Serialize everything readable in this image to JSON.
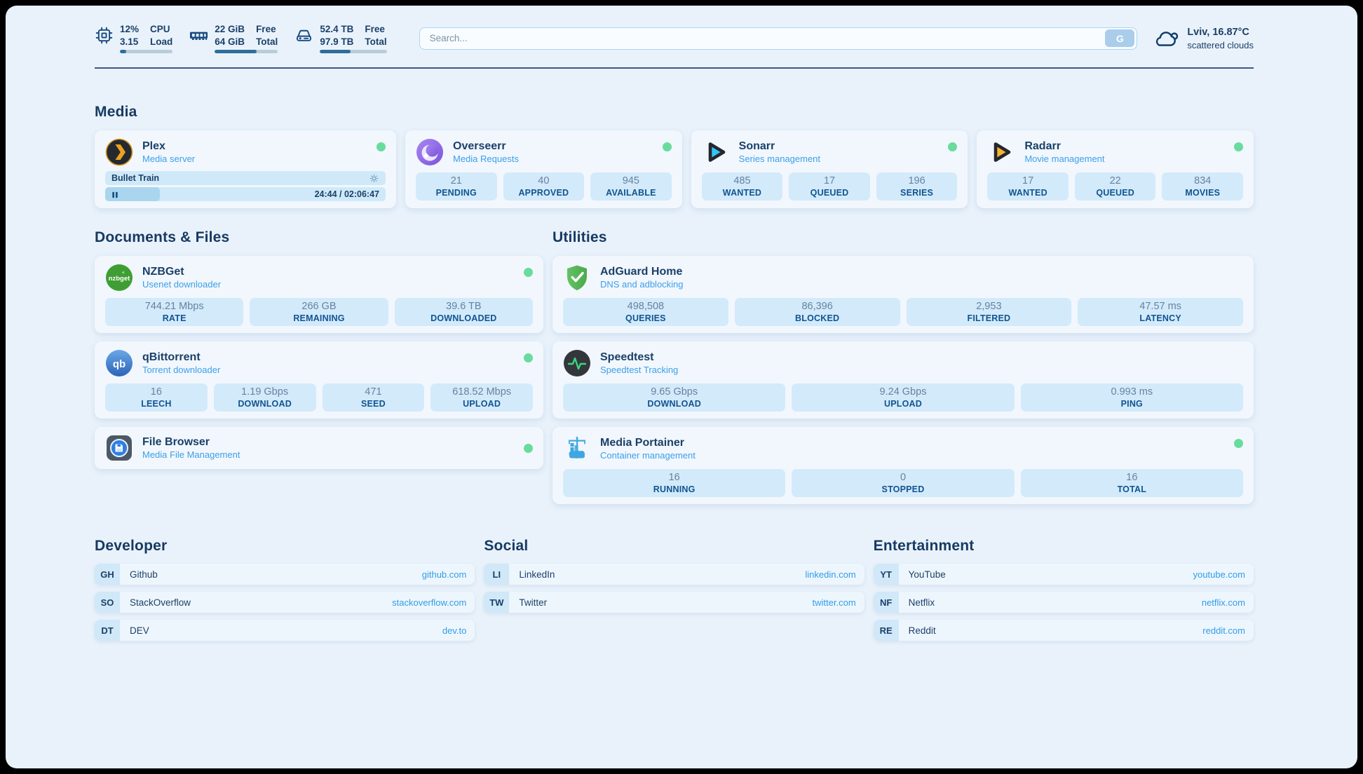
{
  "header": {
    "system_widgets": [
      {
        "icon": "cpu-icon",
        "values": [
          "12%",
          "3.15"
        ],
        "labels": [
          "CPU",
          "Load"
        ],
        "progress_pct": 12
      },
      {
        "icon": "ram-icon",
        "values": [
          "22 GiB",
          "64 GiB"
        ],
        "labels": [
          "Free",
          "Total"
        ],
        "progress_pct": 66
      },
      {
        "icon": "disk-icon",
        "values": [
          "52.4 TB",
          "97.9 TB"
        ],
        "labels": [
          "Free",
          "Total"
        ],
        "progress_pct": 46
      }
    ],
    "search": {
      "placeholder": "Search...",
      "button_label": "G"
    },
    "weather": {
      "location_temperature": "Lviv, 16.87°C",
      "condition": "scattered clouds"
    }
  },
  "media": {
    "heading": "Media",
    "plex": {
      "title": "Plex",
      "subtitle": "Media server",
      "now_playing": "Bullet Train",
      "elapsed_total": "24:44 / 02:06:47",
      "progress_pct": 19.5,
      "status": "online"
    },
    "overseerr": {
      "title": "Overseerr",
      "subtitle": "Media Requests",
      "status": "online",
      "stats": [
        {
          "value": "21",
          "label": "PENDING"
        },
        {
          "value": "40",
          "label": "APPROVED"
        },
        {
          "value": "945",
          "label": "AVAILABLE"
        }
      ]
    },
    "sonarr": {
      "title": "Sonarr",
      "subtitle": "Series management",
      "status": "online",
      "stats": [
        {
          "value": "485",
          "label": "WANTED"
        },
        {
          "value": "17",
          "label": "QUEUED"
        },
        {
          "value": "196",
          "label": "SERIES"
        }
      ]
    },
    "radarr": {
      "title": "Radarr",
      "subtitle": "Movie management",
      "status": "online",
      "stats": [
        {
          "value": "17",
          "label": "WANTED"
        },
        {
          "value": "22",
          "label": "QUEUED"
        },
        {
          "value": "834",
          "label": "MOVIES"
        }
      ]
    }
  },
  "documents": {
    "heading": "Documents & Files",
    "nzbget": {
      "title": "NZBGet",
      "subtitle": "Usenet downloader",
      "status": "online",
      "stats": [
        {
          "value": "744.21 Mbps",
          "label": "RATE"
        },
        {
          "value": "266 GB",
          "label": "REMAINING"
        },
        {
          "value": "39.6 TB",
          "label": "DOWNLOADED"
        }
      ]
    },
    "qbittorrent": {
      "title": "qBittorrent",
      "subtitle": "Torrent downloader",
      "status": "online",
      "stats": [
        {
          "value": "16",
          "label": "LEECH"
        },
        {
          "value": "1.19 Gbps",
          "label": "DOWNLOAD"
        },
        {
          "value": "471",
          "label": "SEED"
        },
        {
          "value": "618.52 Mbps",
          "label": "UPLOAD"
        }
      ]
    },
    "filebrowser": {
      "title": "File Browser",
      "subtitle": "Media File Management",
      "status": "online"
    }
  },
  "utilities": {
    "heading": "Utilities",
    "adguard": {
      "title": "AdGuard Home",
      "subtitle": "DNS and adblocking",
      "stats": [
        {
          "value": "498,508",
          "label": "QUERIES"
        },
        {
          "value": "86,396",
          "label": "BLOCKED"
        },
        {
          "value": "2,953",
          "label": "FILTERED"
        },
        {
          "value": "47.57 ms",
          "label": "LATENCY"
        }
      ]
    },
    "speedtest": {
      "title": "Speedtest",
      "subtitle": "Speedtest Tracking",
      "stats": [
        {
          "value": "9.65 Gbps",
          "label": "DOWNLOAD"
        },
        {
          "value": "9.24 Gbps",
          "label": "UPLOAD"
        },
        {
          "value": "0.993 ms",
          "label": "PING"
        }
      ]
    },
    "portainer": {
      "title": "Media Portainer",
      "subtitle": "Container management",
      "status": "online",
      "stats": [
        {
          "value": "16",
          "label": "RUNNING"
        },
        {
          "value": "0",
          "label": "STOPPED"
        },
        {
          "value": "16",
          "label": "TOTAL"
        }
      ]
    }
  },
  "bookmarks": {
    "developer": {
      "heading": "Developer",
      "links": [
        {
          "abbr": "GH",
          "name": "Github",
          "url": "github.com"
        },
        {
          "abbr": "SO",
          "name": "StackOverflow",
          "url": "stackoverflow.com"
        },
        {
          "abbr": "DT",
          "name": "DEV",
          "url": "dev.to"
        }
      ]
    },
    "social": {
      "heading": "Social",
      "links": [
        {
          "abbr": "LI",
          "name": "LinkedIn",
          "url": "linkedin.com"
        },
        {
          "abbr": "TW",
          "name": "Twitter",
          "url": "twitter.com"
        }
      ]
    },
    "entertainment": {
      "heading": "Entertainment",
      "links": [
        {
          "abbr": "YT",
          "name": "YouTube",
          "url": "youtube.com"
        },
        {
          "abbr": "NF",
          "name": "Netflix",
          "url": "netflix.com"
        },
        {
          "abbr": "RE",
          "name": "Reddit",
          "url": "reddit.com"
        }
      ]
    }
  },
  "colors": {
    "navy": "#1b4068",
    "accent_blue": "#2f9de8",
    "status_green": "#68dc9d",
    "stat_box": "#d3eafb",
    "page_bg": "#e9f2fb"
  }
}
